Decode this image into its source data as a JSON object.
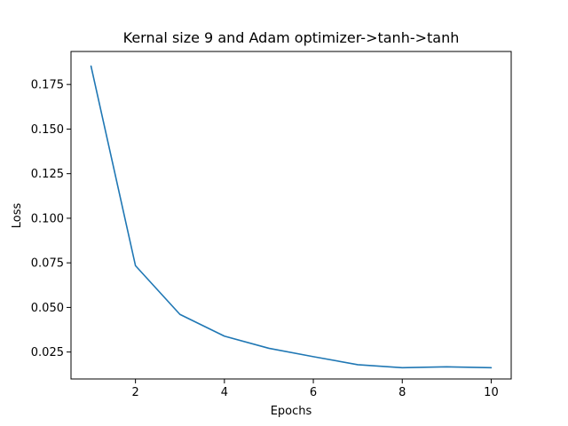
{
  "chart_data": {
    "type": "line",
    "title": "Kernal size 9 and Adam optimizer->tanh->tanh",
    "xlabel": "Epochs",
    "ylabel": "Loss",
    "xlim": [
      0.55,
      10.45
    ],
    "ylim": [
      0.0099,
      0.1935
    ],
    "xticks": [
      2,
      4,
      6,
      8,
      10
    ],
    "xtick_labels": [
      "2",
      "4",
      "6",
      "8",
      "10"
    ],
    "yticks": [
      0.025,
      0.05,
      0.075,
      0.1,
      0.125,
      0.15,
      0.175
    ],
    "ytick_labels": [
      "0.025",
      "0.050",
      "0.075",
      "0.100",
      "0.125",
      "0.150",
      "0.175"
    ],
    "grid": false,
    "series_color": "#1f77b4",
    "series": [
      {
        "x": [
          1,
          2,
          3,
          4,
          5,
          6,
          7,
          8,
          9,
          10
        ],
        "values": [
          0.1853,
          0.0734,
          0.0461,
          0.0339,
          0.0271,
          0.0224,
          0.0179,
          0.0162,
          0.0167,
          0.0162
        ]
      }
    ]
  }
}
